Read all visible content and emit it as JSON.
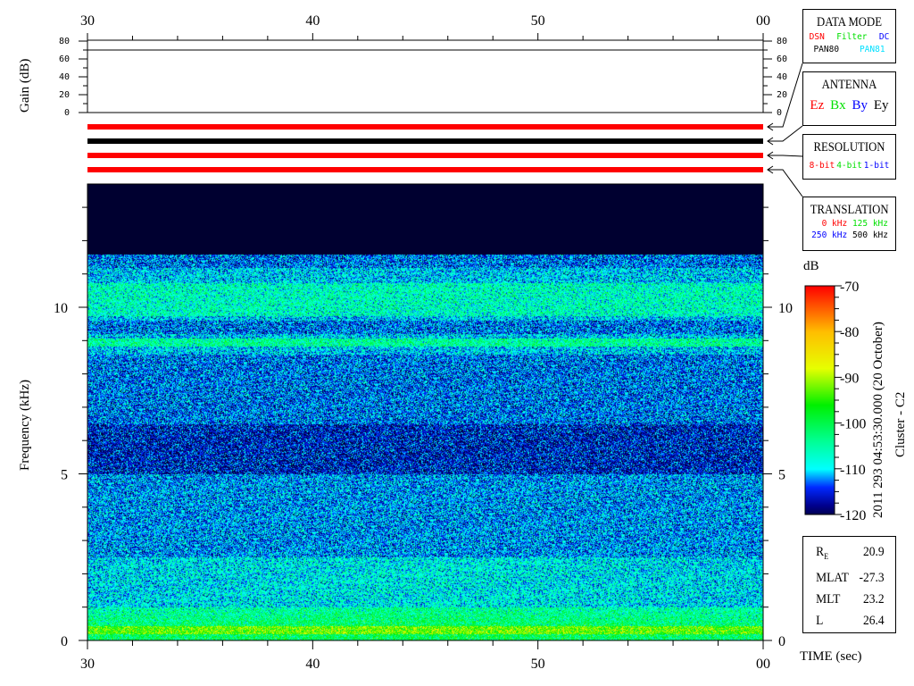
{
  "chart_data": {
    "type": "heatmap",
    "xlabel": "TIME (sec)",
    "x_tick_labels": [
      "30",
      "40",
      "50",
      "00"
    ],
    "x_range": [
      30,
      60
    ],
    "ylabel": "Frequency (kHz)",
    "y_tick_labels": [
      "0",
      "5",
      "10"
    ],
    "y_range": [
      0,
      13.7
    ],
    "colorbar": {
      "unit": "dB",
      "range": [
        -120,
        -70
      ],
      "tick_labels": [
        "-70",
        "-80",
        "-90",
        "-100",
        "-110",
        "-120"
      ]
    },
    "gain": {
      "ylabel": "Gain (dB)",
      "tick_labels": [
        "80",
        "60",
        "40",
        "20",
        "0"
      ],
      "range": [
        0,
        80
      ],
      "value": 70
    },
    "status_bars": [
      {
        "color": "#ff0000"
      },
      {
        "color": "#000000"
      },
      {
        "color": "#ff0000"
      },
      {
        "color": "#ff0000"
      }
    ]
  },
  "panels": {
    "data_mode": {
      "title": "DATA MODE",
      "items": [
        {
          "t": "DSN",
          "c": "#ff0000"
        },
        {
          "t": "Filter",
          "c": "#00e000"
        },
        {
          "t": "DC",
          "c": "#0000ff"
        },
        {
          "t": "PAN80",
          "c": "#000000"
        },
        {
          "t": "PAN81",
          "c": "#00e0ff"
        }
      ]
    },
    "antenna": {
      "title": "ANTENNA",
      "items": [
        {
          "t": "Ez",
          "c": "#ff0000"
        },
        {
          "t": "Bx",
          "c": "#00e000"
        },
        {
          "t": "By",
          "c": "#0000ff"
        },
        {
          "t": "Ey",
          "c": "#000000"
        }
      ]
    },
    "resolution": {
      "title": "RESOLUTION",
      "items": [
        {
          "t": "8-bit",
          "c": "#ff0000"
        },
        {
          "t": "4-bit",
          "c": "#00e000"
        },
        {
          "t": "1-bit",
          "c": "#0000ff"
        }
      ]
    },
    "translation": {
      "title": "TRANSLATION",
      "items": [
        {
          "t": "0 kHz",
          "c": "#ff0000"
        },
        {
          "t": "125 kHz",
          "c": "#00e000"
        },
        {
          "t": "250 kHz",
          "c": "#0000ff"
        },
        {
          "t": "500 kHz",
          "c": "#000000"
        }
      ]
    }
  },
  "timestamp": "2011 293 04:53:30.000 (20 October)",
  "spacecraft": "Cluster - C2",
  "ephemeris": [
    {
      "k": "R",
      "sub": "E",
      "v": "20.9"
    },
    {
      "k": "MLAT",
      "v": "-27.3"
    },
    {
      "k": "MLT",
      "v": "23.2"
    },
    {
      "k": "L",
      "v": "26.4"
    }
  ]
}
